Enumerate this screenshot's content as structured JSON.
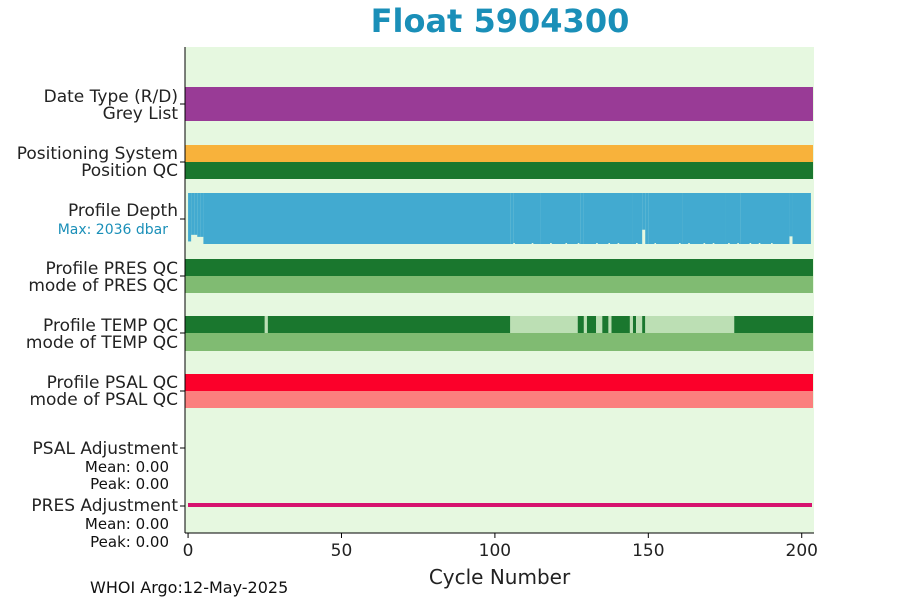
{
  "title": "Float 5904300",
  "footer": "WHOI Argo:12-May-2025",
  "colors": {
    "background": "#e6f8e0",
    "title": "#1a8fb8",
    "purple": "#993b96",
    "orange": "#f8b23b",
    "dark_green": "#1a772e",
    "light_green": "#80bb72",
    "pale_green": "#bcdfb4",
    "blue": "#42aad0",
    "red": "#fb002a",
    "light_red": "#fb7f7e",
    "magenta": "#d6136f",
    "depth_label": "#1a8fb8"
  },
  "chart_data": {
    "type": "bar",
    "title": "Float 5904300",
    "xlabel": "Cycle Number",
    "xlim": [
      -1,
      204
    ],
    "xticks": [
      0,
      50,
      100,
      150,
      200
    ],
    "row_labels": [
      "Date Type (R/D)",
      "Grey List",
      "Positioning System",
      "Position QC",
      "Profile Depth",
      "Max: 2036 dbar",
      "Profile PRES QC",
      "mode of PRES QC",
      "Profile TEMP QC",
      "mode of TEMP QC",
      "Profile PSAL QC",
      "mode of PSAL QC",
      "PSAL Adjustment",
      "Mean: 0.00",
      "Peak: 0.00",
      "PRES Adjustment",
      "Mean: 0.00",
      "Peak: 0.00"
    ],
    "profile_depth": {
      "max_dbar": 2036,
      "cycles": [
        0,
        1,
        2,
        3,
        4,
        5,
        105,
        106,
        115,
        116,
        128,
        129,
        145,
        148,
        149,
        150,
        160,
        161,
        175,
        180,
        196,
        197,
        203
      ],
      "depth_fraction": [
        0.95,
        0.82,
        0.82,
        0.86,
        0.86,
        1.0,
        1.0,
        1.0,
        1.0,
        1.0,
        1.0,
        1.0,
        1.0,
        0.72,
        1.0,
        1.0,
        1.0,
        1.0,
        1.0,
        1.0,
        0.85,
        1.0,
        1.0
      ]
    },
    "temp_qc": {
      "note_values": "segments of QC level over cycle ranges (dark = good, pale = mixed)",
      "segments": [
        {
          "from": -1,
          "to": 25,
          "level": "good"
        },
        {
          "from": 25,
          "to": 26,
          "level": "mixed"
        },
        {
          "from": 26,
          "to": 105,
          "level": "good"
        },
        {
          "from": 105,
          "to": 127,
          "level": "mixed"
        },
        {
          "from": 127,
          "to": 129,
          "level": "good"
        },
        {
          "from": 129,
          "to": 130,
          "level": "mixed"
        },
        {
          "from": 130,
          "to": 133,
          "level": "good"
        },
        {
          "from": 133,
          "to": 135,
          "level": "mixed"
        },
        {
          "from": 135,
          "to": 137,
          "level": "good"
        },
        {
          "from": 137,
          "to": 138,
          "level": "mixed"
        },
        {
          "from": 138,
          "to": 144,
          "level": "good"
        },
        {
          "from": 144,
          "to": 145,
          "level": "mixed"
        },
        {
          "from": 145,
          "to": 146,
          "level": "good"
        },
        {
          "from": 146,
          "to": 148,
          "level": "mixed"
        },
        {
          "from": 148,
          "to": 149,
          "level": "good"
        },
        {
          "from": 149,
          "to": 178,
          "level": "mixed"
        },
        {
          "from": 178,
          "to": 204,
          "level": "good"
        }
      ]
    },
    "pres_adjustment": {
      "mean": 0.0,
      "peak": 0.0
    },
    "psal_adjustment": {
      "mean": 0.0,
      "peak": 0.0
    }
  }
}
